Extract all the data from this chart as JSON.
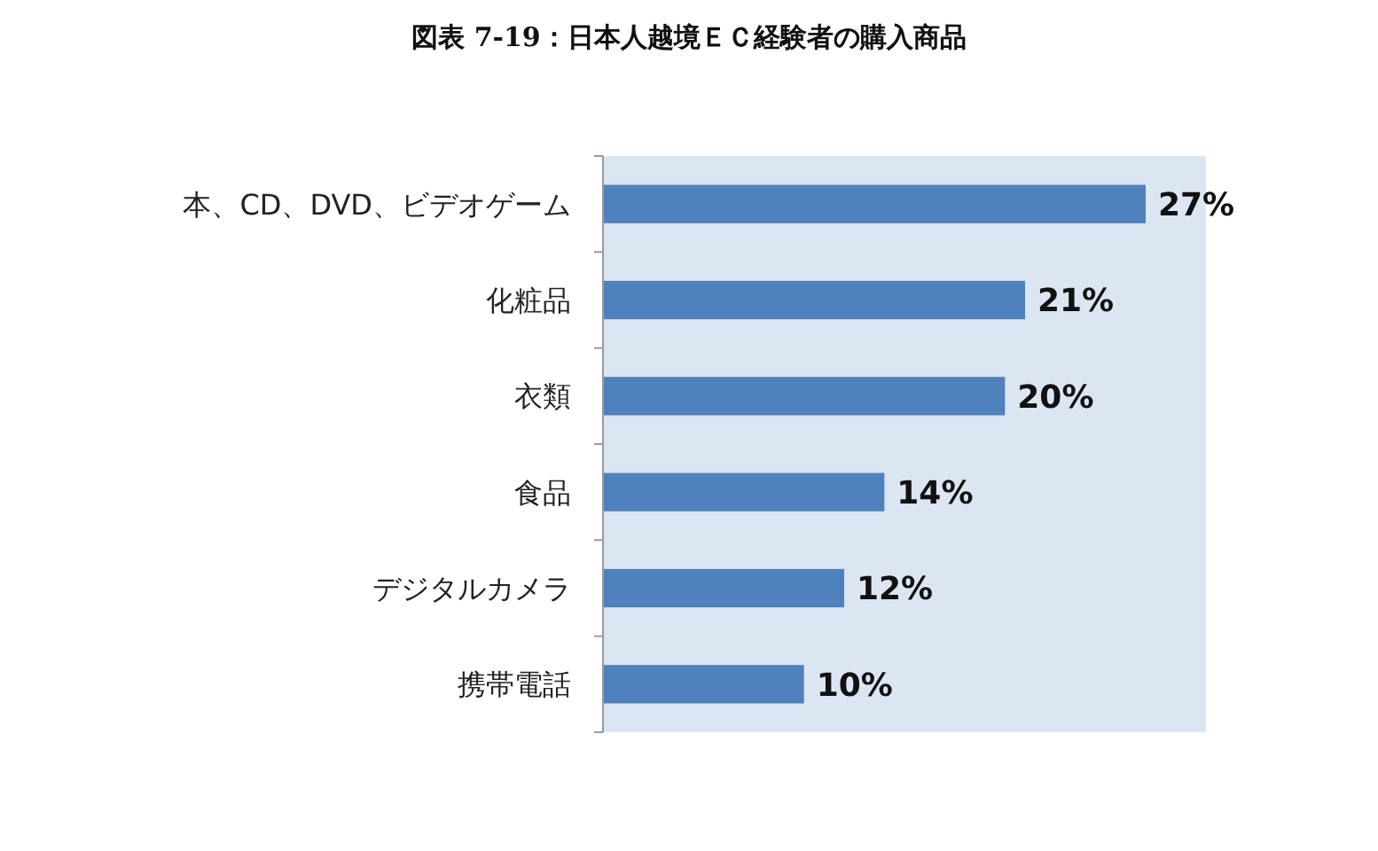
{
  "chart_data": {
    "type": "bar",
    "title": "図表 7-19：日本人越境ＥＣ経験者の購入商品",
    "orientation": "horizontal",
    "categories": [
      "本、CD、DVD、ビデオゲーム",
      "化粧品",
      "衣類",
      "食品",
      "デジタルカメラ",
      "携帯電話"
    ],
    "values": [
      27,
      21,
      20,
      14,
      12,
      10
    ],
    "value_labels": [
      "27%",
      "21%",
      "20%",
      "14%",
      "12%",
      "10%"
    ],
    "color": "#4f81bd",
    "xlim": [
      0,
      30
    ],
    "tick_labels": "y"
  }
}
